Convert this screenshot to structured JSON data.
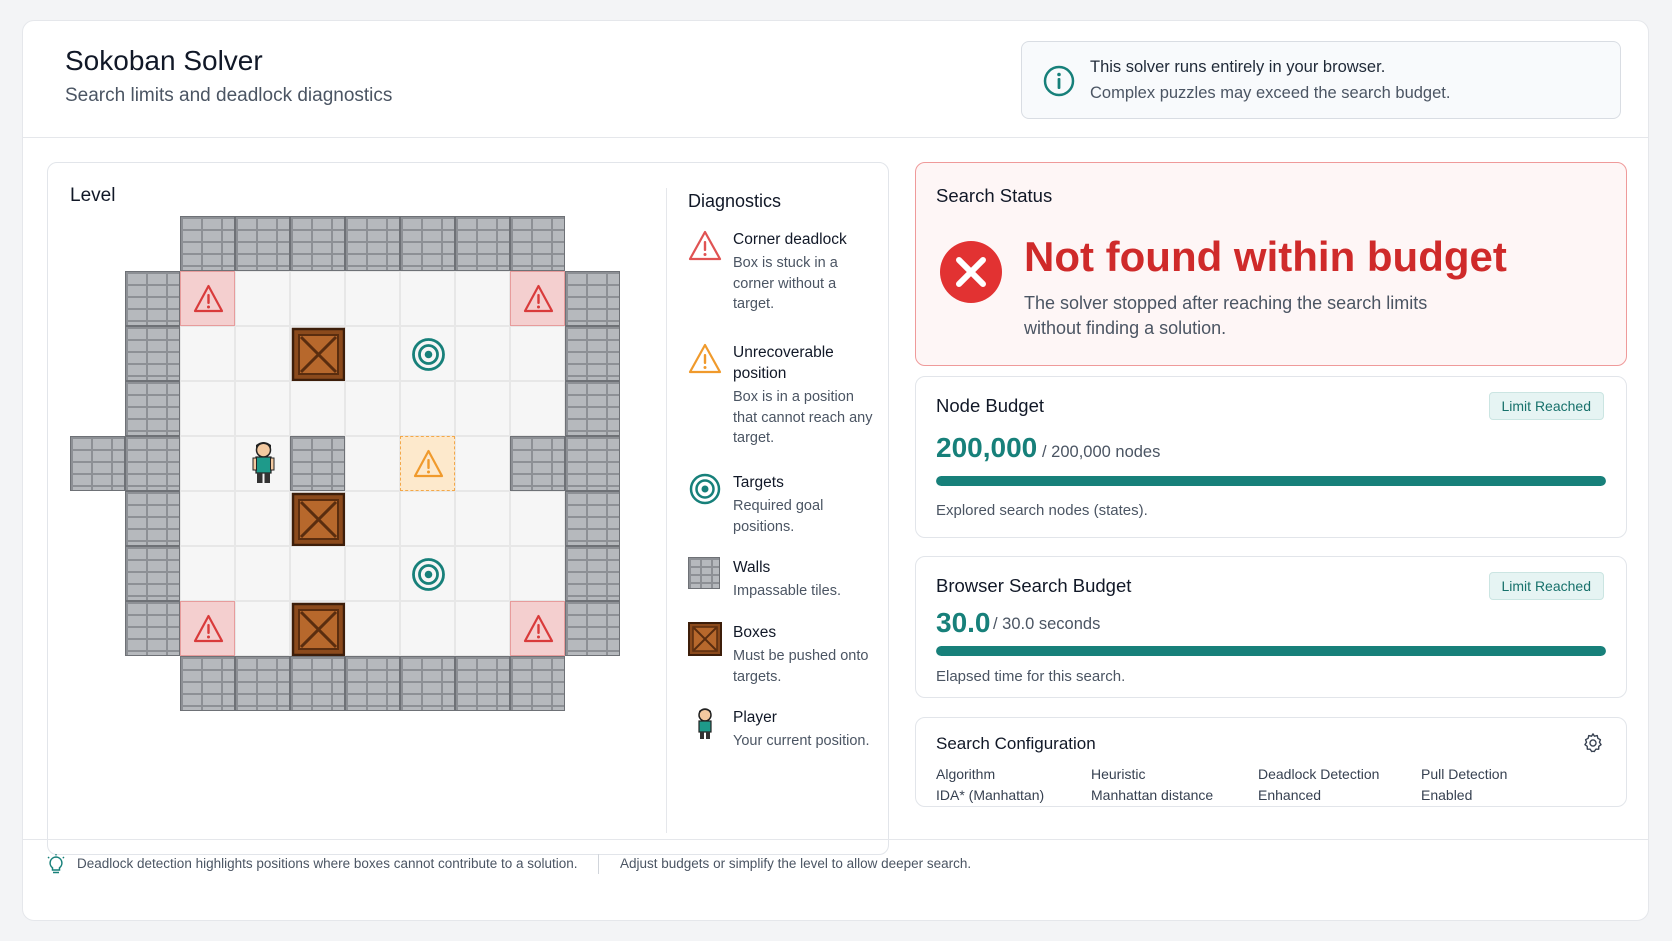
{
  "header": {
    "title": "Sokoban Solver",
    "subtitle": "Search limits and deadlock diagnostics",
    "info_icon": "info-circle-icon",
    "info_line1": "This solver runs entirely in your browser.",
    "info_line2": "Complex puzzles may exceed the search budget."
  },
  "level": {
    "label": "Level",
    "grid": [
      "..#######..",
      ".#A.....A#.",
      ".#..B.T..#.",
      ".#.......#.",
      "##.P#.U.##.",
      ".#..B....#.",
      ".#....T..#.",
      ".#A.B...A#.",
      "..#######.."
    ],
    "legend_key": {
      "#": "wall",
      ".": "floor",
      "A": "corner-deadlock",
      "U": "unrecoverable-position",
      "B": "box",
      "T": "target",
      "P": "player"
    }
  },
  "diagnostics": {
    "title": "Diagnostics",
    "items": [
      {
        "icon": "warning-red-icon",
        "name": "Corner deadlock",
        "desc": "Box is stuck in a corner without a target."
      },
      {
        "icon": "warning-orange-icon",
        "name": "Unrecoverable position",
        "desc": "Box is in a position that cannot reach any target."
      },
      {
        "icon": "target-icon",
        "name": "Targets",
        "desc": "Required goal positions."
      },
      {
        "icon": "wall-icon",
        "name": "Walls",
        "desc": "Impassable tiles."
      },
      {
        "icon": "box-icon",
        "name": "Boxes",
        "desc": "Must be pushed onto targets."
      },
      {
        "icon": "player-icon",
        "name": "Player",
        "desc": "Your current position."
      }
    ]
  },
  "status": {
    "label": "Search Status",
    "icon": "error-x-icon",
    "headline": "Not found within budget",
    "description": "The solver stopped after reaching the search limits without finding a solution.",
    "color": "#cf2a2a"
  },
  "node_budget": {
    "title": "Node Budget",
    "badge": "Limit Reached",
    "value": "200,000",
    "of": "/ 200,000 nodes",
    "progress": 1.0,
    "note": "Explored search nodes (states)."
  },
  "time_budget": {
    "title": "Browser Search Budget",
    "badge": "Limit Reached",
    "value": "30.0",
    "of": "/ 30.0 seconds",
    "progress": 1.0,
    "note": "Elapsed time for this search."
  },
  "config": {
    "title": "Search Configuration",
    "gear_icon": "gear-icon",
    "items": [
      {
        "label": "Algorithm",
        "value": "IDA* (Manhattan)"
      },
      {
        "label": "Heuristic",
        "value": "Manhattan distance"
      },
      {
        "label": "Deadlock Detection",
        "value": "Enhanced"
      },
      {
        "label": "Pull Detection",
        "value": "Enabled"
      }
    ]
  },
  "footer": {
    "bulb_icon": "lightbulb-icon",
    "text1": "Deadlock detection highlights positions where boxes cannot contribute to a solution.",
    "text2": "Adjust budgets or simplify the level to allow deeper search."
  },
  "colors": {
    "accent": "#17807a",
    "error": "#cf2a2a",
    "corner_deadlock": "#f4cfcf",
    "unrecoverable": "#fde9cc",
    "box": "#8b4a1c"
  }
}
